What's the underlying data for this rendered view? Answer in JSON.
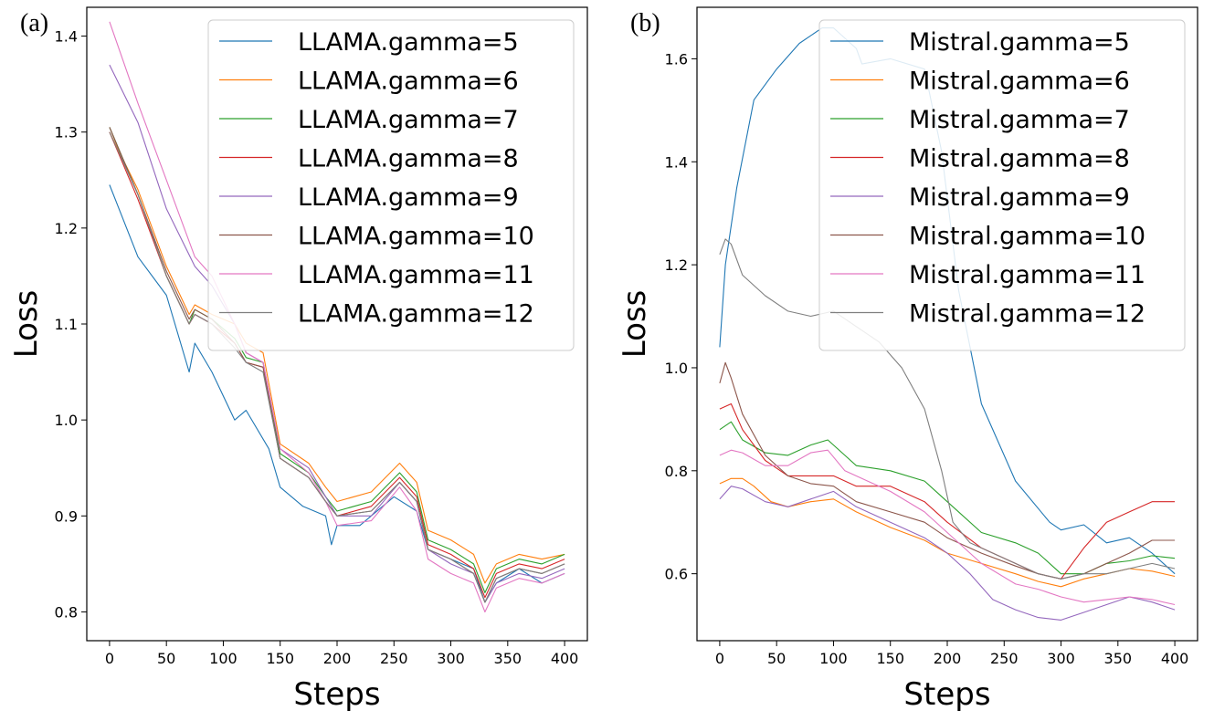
{
  "colors": [
    "#1f77b4",
    "#ff7f0e",
    "#2ca02c",
    "#d62728",
    "#9467bd",
    "#8c564b",
    "#e377c2",
    "#7f7f7f"
  ],
  "chart_data": [
    {
      "panel_label": "(a)",
      "type": "line",
      "xlabel": "Steps",
      "ylabel": "Loss",
      "xlim": [
        -20,
        420
      ],
      "ylim": [
        0.77,
        1.43
      ],
      "xticks": [
        0,
        50,
        100,
        150,
        200,
        250,
        300,
        350,
        400
      ],
      "yticks": [
        0.8,
        0.9,
        1.0,
        1.1,
        1.2,
        1.3,
        1.4
      ],
      "ytick_labels": [
        "0.8",
        "0.9",
        "1.0",
        "1.1",
        "1.2",
        "1.3",
        "1.4"
      ],
      "legend_position": "top-right",
      "series": [
        {
          "name": "LLAMA.gamma=5",
          "x": [
            0,
            25,
            50,
            70,
            75,
            90,
            110,
            120,
            140,
            150,
            170,
            190,
            195,
            200,
            220,
            250,
            270,
            280,
            300,
            320,
            330,
            340,
            360,
            380,
            400
          ],
          "y": [
            1.245,
            1.17,
            1.13,
            1.05,
            1.08,
            1.05,
            1.0,
            1.01,
            0.97,
            0.93,
            0.91,
            0.9,
            0.87,
            0.89,
            0.89,
            0.92,
            0.905,
            0.865,
            0.855,
            0.845,
            0.81,
            0.83,
            0.845,
            0.83,
            0.84
          ]
        },
        {
          "name": "LLAMA.gamma=6",
          "x": [
            0,
            25,
            50,
            70,
            75,
            90,
            110,
            120,
            135,
            150,
            175,
            190,
            200,
            230,
            255,
            270,
            280,
            300,
            320,
            330,
            340,
            360,
            380,
            400
          ],
          "y": [
            1.3,
            1.24,
            1.16,
            1.11,
            1.12,
            1.11,
            1.1,
            1.08,
            1.07,
            0.975,
            0.955,
            0.93,
            0.915,
            0.925,
            0.955,
            0.935,
            0.885,
            0.875,
            0.86,
            0.83,
            0.85,
            0.86,
            0.855,
            0.86
          ]
        },
        {
          "name": "LLAMA.gamma=7",
          "x": [
            0,
            25,
            50,
            70,
            75,
            90,
            110,
            120,
            135,
            150,
            175,
            190,
            200,
            230,
            255,
            270,
            280,
            300,
            320,
            330,
            340,
            360,
            380,
            400
          ],
          "y": [
            1.305,
            1.235,
            1.15,
            1.1,
            1.115,
            1.105,
            1.085,
            1.065,
            1.06,
            0.965,
            0.945,
            0.92,
            0.905,
            0.915,
            0.945,
            0.925,
            0.875,
            0.865,
            0.85,
            0.82,
            0.845,
            0.855,
            0.85,
            0.86
          ]
        },
        {
          "name": "LLAMA.gamma=8",
          "x": [
            0,
            25,
            50,
            70,
            75,
            90,
            110,
            120,
            135,
            150,
            175,
            190,
            200,
            230,
            255,
            270,
            280,
            300,
            320,
            330,
            340,
            360,
            380,
            400
          ],
          "y": [
            1.3,
            1.23,
            1.15,
            1.1,
            1.11,
            1.1,
            1.08,
            1.06,
            1.055,
            0.96,
            0.94,
            0.915,
            0.9,
            0.91,
            0.94,
            0.92,
            0.87,
            0.86,
            0.845,
            0.815,
            0.84,
            0.85,
            0.845,
            0.855
          ]
        },
        {
          "name": "LLAMA.gamma=9",
          "x": [
            0,
            25,
            50,
            75,
            90,
            110,
            120,
            135,
            150,
            175,
            190,
            200,
            230,
            255,
            270,
            280,
            300,
            320,
            330,
            340,
            360,
            380,
            400
          ],
          "y": [
            1.37,
            1.31,
            1.22,
            1.16,
            1.14,
            1.1,
            1.07,
            1.06,
            0.97,
            0.95,
            0.92,
            0.9,
            0.9,
            0.935,
            0.915,
            0.865,
            0.85,
            0.84,
            0.81,
            0.83,
            0.84,
            0.835,
            0.845
          ]
        },
        {
          "name": "LLAMA.gamma=10",
          "x": [
            0,
            25,
            50,
            70,
            75,
            90,
            110,
            120,
            135,
            150,
            175,
            190,
            200,
            230,
            255,
            270,
            280,
            300,
            320,
            330,
            340,
            360,
            380,
            400
          ],
          "y": [
            1.305,
            1.235,
            1.155,
            1.105,
            1.115,
            1.105,
            1.08,
            1.06,
            1.055,
            0.96,
            0.94,
            0.915,
            0.9,
            0.905,
            0.935,
            0.915,
            0.865,
            0.855,
            0.84,
            0.81,
            0.835,
            0.845,
            0.84,
            0.85
          ]
        },
        {
          "name": "LLAMA.gamma=11",
          "x": [
            0,
            25,
            50,
            75,
            90,
            110,
            120,
            135,
            150,
            175,
            190,
            200,
            230,
            255,
            270,
            280,
            300,
            320,
            330,
            340,
            360,
            380,
            400
          ],
          "y": [
            1.415,
            1.33,
            1.25,
            1.17,
            1.15,
            1.1,
            1.07,
            1.06,
            0.97,
            0.945,
            0.915,
            0.89,
            0.895,
            0.93,
            0.905,
            0.855,
            0.84,
            0.83,
            0.8,
            0.825,
            0.835,
            0.83,
            0.84
          ]
        },
        {
          "name": "LLAMA.gamma=12",
          "x": [
            0,
            25,
            50,
            70,
            75,
            90,
            110,
            120,
            135,
            150,
            175,
            190,
            200,
            230,
            255,
            270,
            280,
            300,
            320,
            330,
            340,
            360,
            380,
            400
          ],
          "y": [
            1.3,
            1.235,
            1.15,
            1.1,
            1.11,
            1.1,
            1.075,
            1.06,
            1.05,
            0.96,
            0.94,
            0.915,
            0.9,
            0.905,
            0.935,
            0.915,
            0.865,
            0.855,
            0.84,
            0.81,
            0.835,
            0.845,
            0.84,
            0.85
          ]
        }
      ]
    },
    {
      "panel_label": "(b)",
      "type": "line",
      "xlabel": "Steps",
      "ylabel": "Loss",
      "xlim": [
        -20,
        420
      ],
      "ylim": [
        0.47,
        1.7
      ],
      "xticks": [
        0,
        50,
        100,
        150,
        200,
        250,
        300,
        350,
        400
      ],
      "yticks": [
        0.6,
        0.8,
        1.0,
        1.2,
        1.4,
        1.6
      ],
      "ytick_labels": [
        "0.6",
        "0.8",
        "1.0",
        "1.2",
        "1.4",
        "1.6"
      ],
      "legend_position": "top-right",
      "series": [
        {
          "name": "Mistral.gamma=5",
          "x": [
            0,
            5,
            15,
            30,
            50,
            70,
            90,
            100,
            120,
            125,
            150,
            180,
            195,
            210,
            230,
            260,
            290,
            300,
            320,
            340,
            360,
            380,
            400
          ],
          "y": [
            1.04,
            1.2,
            1.35,
            1.52,
            1.58,
            1.63,
            1.66,
            1.66,
            1.62,
            1.59,
            1.6,
            1.58,
            1.42,
            1.15,
            0.93,
            0.78,
            0.7,
            0.685,
            0.695,
            0.66,
            0.67,
            0.64,
            0.6
          ]
        },
        {
          "name": "Mistral.gamma=6",
          "x": [
            0,
            10,
            20,
            30,
            45,
            60,
            80,
            100,
            120,
            150,
            180,
            200,
            230,
            260,
            280,
            300,
            320,
            340,
            360,
            380,
            400
          ],
          "y": [
            0.775,
            0.785,
            0.785,
            0.77,
            0.74,
            0.73,
            0.74,
            0.745,
            0.72,
            0.69,
            0.665,
            0.64,
            0.62,
            0.6,
            0.585,
            0.575,
            0.59,
            0.6,
            0.61,
            0.605,
            0.595
          ]
        },
        {
          "name": "Mistral.gamma=7",
          "x": [
            0,
            10,
            20,
            40,
            60,
            80,
            95,
            110,
            120,
            150,
            180,
            200,
            230,
            260,
            280,
            300,
            320,
            340,
            360,
            380,
            400
          ],
          "y": [
            0.88,
            0.895,
            0.86,
            0.835,
            0.83,
            0.85,
            0.86,
            0.83,
            0.81,
            0.8,
            0.78,
            0.74,
            0.68,
            0.66,
            0.64,
            0.6,
            0.6,
            0.62,
            0.625,
            0.635,
            0.63
          ]
        },
        {
          "name": "Mistral.gamma=8",
          "x": [
            0,
            10,
            20,
            40,
            60,
            80,
            100,
            120,
            150,
            180,
            200,
            230,
            260,
            280,
            300,
            320,
            340,
            360,
            380,
            400
          ],
          "y": [
            0.92,
            0.93,
            0.88,
            0.82,
            0.79,
            0.79,
            0.79,
            0.77,
            0.77,
            0.74,
            0.7,
            0.65,
            0.62,
            0.6,
            0.59,
            0.65,
            0.7,
            0.72,
            0.74,
            0.74
          ]
        },
        {
          "name": "Mistral.gamma=9",
          "x": [
            0,
            10,
            20,
            40,
            60,
            80,
            100,
            120,
            150,
            180,
            200,
            220,
            240,
            260,
            280,
            300,
            320,
            340,
            360,
            380,
            400
          ],
          "y": [
            0.745,
            0.77,
            0.765,
            0.74,
            0.73,
            0.745,
            0.76,
            0.73,
            0.7,
            0.67,
            0.64,
            0.6,
            0.55,
            0.53,
            0.515,
            0.51,
            0.525,
            0.54,
            0.555,
            0.545,
            0.53
          ]
        },
        {
          "name": "Mistral.gamma=10",
          "x": [
            0,
            5,
            10,
            20,
            40,
            60,
            80,
            100,
            120,
            150,
            180,
            200,
            230,
            260,
            280,
            300,
            320,
            340,
            360,
            380,
            400
          ],
          "y": [
            0.97,
            1.01,
            0.98,
            0.91,
            0.83,
            0.79,
            0.775,
            0.77,
            0.74,
            0.72,
            0.7,
            0.67,
            0.64,
            0.615,
            0.6,
            0.59,
            0.6,
            0.62,
            0.64,
            0.665,
            0.665
          ]
        },
        {
          "name": "Mistral.gamma=11",
          "x": [
            0,
            10,
            20,
            40,
            60,
            80,
            95,
            110,
            130,
            150,
            180,
            200,
            230,
            260,
            280,
            300,
            320,
            340,
            360,
            380,
            400
          ],
          "y": [
            0.83,
            0.84,
            0.835,
            0.81,
            0.81,
            0.835,
            0.84,
            0.8,
            0.78,
            0.76,
            0.72,
            0.68,
            0.62,
            0.58,
            0.57,
            0.555,
            0.545,
            0.55,
            0.555,
            0.55,
            0.54
          ]
        },
        {
          "name": "Mistral.gamma=12",
          "x": [
            0,
            5,
            10,
            20,
            40,
            60,
            80,
            100,
            120,
            140,
            160,
            180,
            195,
            205,
            220,
            250,
            280,
            300,
            320,
            340,
            360,
            380,
            400
          ],
          "y": [
            1.22,
            1.25,
            1.24,
            1.18,
            1.14,
            1.11,
            1.1,
            1.11,
            1.08,
            1.05,
            1.0,
            0.92,
            0.8,
            0.7,
            0.66,
            0.63,
            0.6,
            0.59,
            0.6,
            0.6,
            0.61,
            0.62,
            0.61
          ]
        }
      ]
    }
  ]
}
